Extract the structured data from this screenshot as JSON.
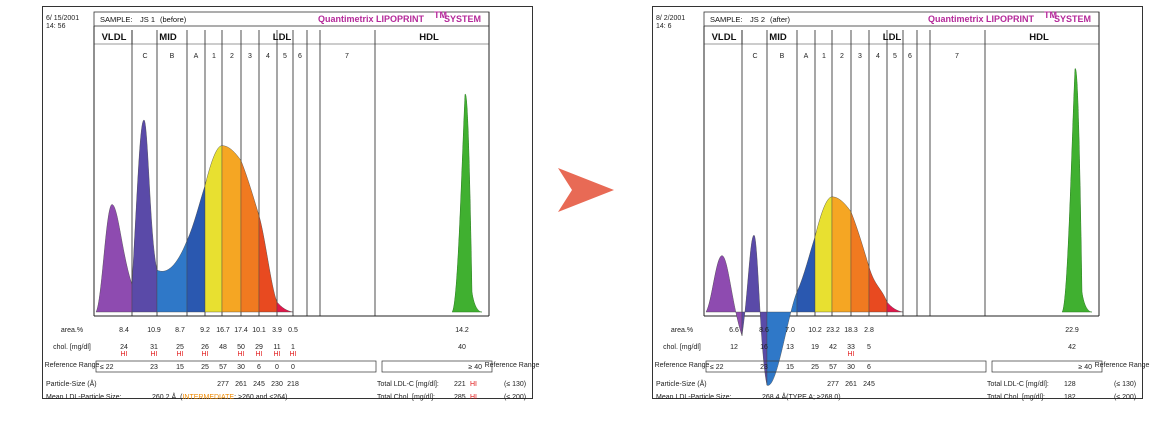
{
  "arrow": {
    "color": "#e86a55"
  },
  "chart_data": [
    {
      "type": "area",
      "date": "6/ 15/2001",
      "time": "14: 56",
      "sample_label": "SAMPLE:",
      "sample_name": "JS 1",
      "sample_state": "(before)",
      "brand": "Quantimetrix LIPOPRINT",
      "brand_tm": "TM",
      "brand_suffix": "SYSTEM",
      "groups": {
        "vldl": "VLDL",
        "mid": "MID",
        "ldl": "LDL",
        "hdl": "HDL"
      },
      "subfractions": [
        "C",
        "B",
        "A",
        "1",
        "2",
        "3",
        "4",
        "5",
        "6",
        "7"
      ],
      "row_labels": {
        "area": "area.%",
        "chol": "chol. [mg/dl]",
        "ref": "Reference Range",
        "ref_right": "Reference Range",
        "particle": "Particle-Size (Å)",
        "mean": "Mean LDL-Particle Size:"
      },
      "area_values": [
        "8.4",
        "10.9",
        "8.7",
        "9.2",
        "16.7",
        "17.4",
        "10.1",
        "3.9",
        "0.5"
      ],
      "hdl_area": "14.2",
      "chol_values": [
        "24",
        "31",
        "25",
        "26",
        "48",
        "50",
        "29",
        "11",
        "1"
      ],
      "chol_flags": [
        "HI",
        "HI",
        "HI",
        "HI",
        "",
        "HI",
        "HI",
        "HI",
        "HI"
      ],
      "hdl_chol": "40",
      "ref_le": "≤ 22",
      "ref_values": [
        "23",
        "15",
        "25",
        "57",
        "30",
        "6",
        "0",
        "0"
      ],
      "hdl_ref": "≥ 40",
      "particle_sizes": [
        "277",
        "261",
        "245",
        "230",
        "218"
      ],
      "mean_size": "260.2 Å",
      "mean_open": "(",
      "mean_type": "INTERMEDIATE",
      "mean_rest": ": >260 and <264)",
      "total_ldl_label": "Total LDL-C [mg/dl]:",
      "total_ldl_value": "221",
      "total_ldl_flag": "HI",
      "total_ldl_ref": "(≤ 130)",
      "total_chol_label": "Total Chol. [mg/dl]:",
      "total_chol_value": "285",
      "total_chol_flag": "HI",
      "total_chol_ref": "(≤ 200)",
      "peaks": {
        "vldl": 0.42,
        "mid_c": 0.75,
        "ldl_main": 0.65,
        "hdl": 0.85
      },
      "colors": [
        "#8e4bb0",
        "#5a4aa8",
        "#2f78c8",
        "#2a58b0",
        "#e8e030",
        "#f5a623",
        "#f07a20",
        "#e84a20",
        "#e0184a",
        "#40b030"
      ]
    },
    {
      "type": "area",
      "date": "8/ 2/2001",
      "time": "14: 6",
      "sample_label": "SAMPLE:",
      "sample_name": "JS 2",
      "sample_state": "(after)",
      "brand": "Quantimetrix LIPOPRINT",
      "brand_tm": "TM",
      "brand_suffix": "SYSTEM",
      "groups": {
        "vldl": "VLDL",
        "mid": "MID",
        "ldl": "LDL",
        "hdl": "HDL"
      },
      "subfractions": [
        "C",
        "B",
        "A",
        "1",
        "2",
        "3",
        "4",
        "5",
        "6",
        "7"
      ],
      "row_labels": {
        "area": "area.%",
        "chol": "chol. [mg/dl]",
        "ref": "Reference Range",
        "ref_right": "Reference Range",
        "particle": "Particle-Size (Å)",
        "mean": "Mean LDL-Particle Size:"
      },
      "area_values": [
        "6.6",
        "8.6",
        "7.0",
        "10.2",
        "23.2",
        "18.3",
        "2.8"
      ],
      "hdl_area": "22.9",
      "chol_values": [
        "12",
        "16",
        "13",
        "19",
        "42",
        "33",
        "5"
      ],
      "chol_flags": [
        "",
        "",
        "",
        "",
        "",
        "HI",
        ""
      ],
      "hdl_chol": "42",
      "ref_le": "≤ 22",
      "ref_values": [
        "23",
        "15",
        "25",
        "57",
        "30",
        "6"
      ],
      "hdl_ref": "≥ 40",
      "particle_sizes": [
        "277",
        "261",
        "245"
      ],
      "mean_size": "268.4 Å",
      "mean_open": "",
      "mean_type": "(TYPE A; ≥268.0)",
      "mean_rest": "",
      "total_ldl_label": "Total LDL-C [mg/dl]:",
      "total_ldl_value": "128",
      "total_ldl_flag": "",
      "total_ldl_ref": "(≤ 130)",
      "total_chol_label": "Total Chol. [mg/dl]:",
      "total_chol_value": "182",
      "total_chol_flag": "",
      "total_chol_ref": "(≤ 200)",
      "peaks": {
        "vldl": 0.22,
        "mid_c": 0.3,
        "ldl_main": 0.45,
        "hdl": 0.95
      },
      "colors": [
        "#8e4bb0",
        "#5a4aa8",
        "#2f78c8",
        "#2a58b0",
        "#e8e030",
        "#f5a623",
        "#f07a20",
        "#e84a20",
        "#e0184a",
        "#40b030"
      ]
    }
  ]
}
